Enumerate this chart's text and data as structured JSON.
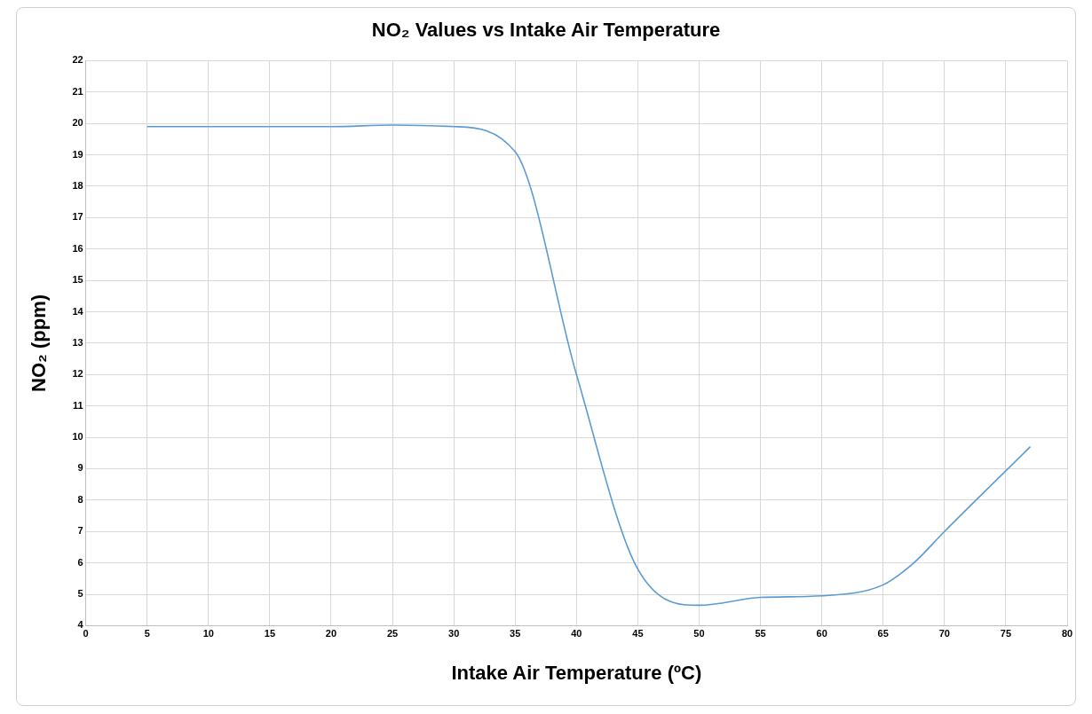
{
  "chart_data": {
    "type": "line",
    "title": "NO₂ Values vs Intake Air Temperature",
    "xlabel": "Intake Air Temperature (ºC)",
    "ylabel": "NO₂ (ppm)",
    "x": [
      5,
      10,
      15,
      20,
      25,
      30,
      35,
      40,
      45,
      50,
      55,
      60,
      65,
      67.5,
      70,
      77
    ],
    "series": [
      {
        "color": "#5b9bd5",
        "values": [
          19.9,
          19.9,
          19.9,
          19.9,
          19.95,
          19.9,
          19.1,
          12,
          5.8,
          4.65,
          4.9,
          4.95,
          5.3,
          6,
          7,
          9.7
        ]
      }
    ],
    "xlim": [
      0,
      80
    ],
    "xticks": [
      0,
      5,
      10,
      15,
      20,
      25,
      30,
      35,
      40,
      45,
      50,
      55,
      60,
      65,
      70,
      75,
      80
    ],
    "ylim": [
      4,
      22
    ],
    "yticks": [
      4,
      5,
      6,
      7,
      8,
      9,
      10,
      11,
      12,
      13,
      14,
      15,
      16,
      17,
      18,
      19,
      20,
      21,
      22
    ],
    "grid": true,
    "legend": false,
    "marker": "none",
    "line_style": "solid"
  }
}
